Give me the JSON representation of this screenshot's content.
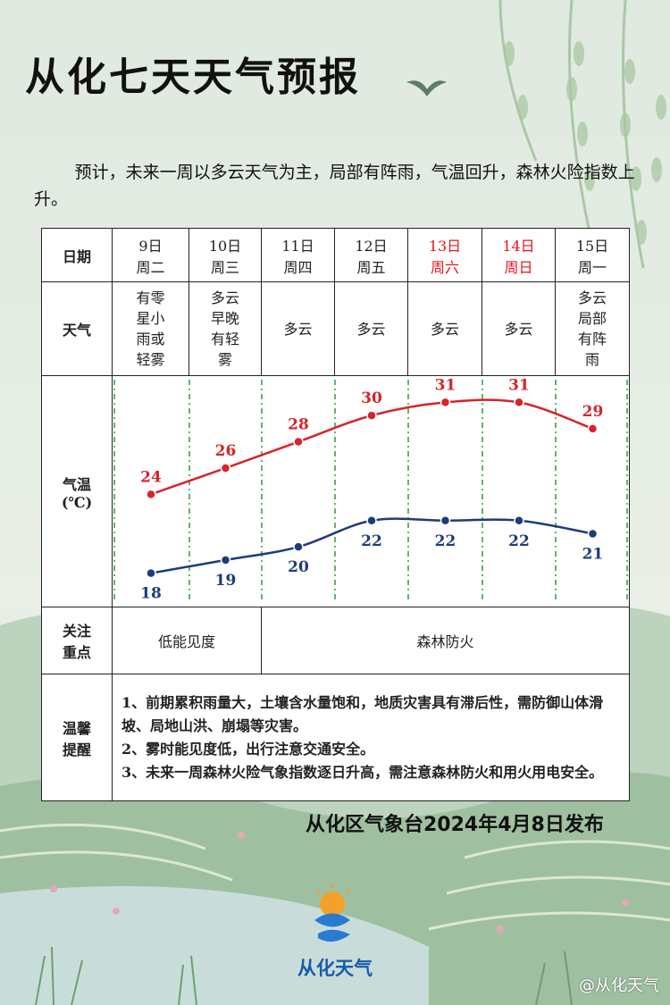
{
  "title": "从化七天天气预报",
  "intro": "预计，未来一周以多云天气为主，局部有阵雨，气温回升，森林火险指数上升。",
  "labels": {
    "date": "日期",
    "weather": "天气",
    "temp_line1": "气温",
    "temp_line2": "(℃)",
    "focus_line1": "关注",
    "focus_line2": "重点",
    "tips_line1": "温馨",
    "tips_line2": "提醒"
  },
  "days": [
    {
      "date": "9日",
      "weekday": "周二",
      "weather": [
        "有零",
        "星小",
        "雨或",
        "轻雾"
      ],
      "high": 24,
      "low": 18,
      "weekend": false
    },
    {
      "date": "10日",
      "weekday": "周三",
      "weather": [
        "多云",
        "早晚",
        "有轻",
        "雾"
      ],
      "high": 26,
      "low": 19,
      "weekend": false
    },
    {
      "date": "11日",
      "weekday": "周四",
      "weather": [
        "多云"
      ],
      "high": 28,
      "low": 20,
      "weekend": false
    },
    {
      "date": "12日",
      "weekday": "周五",
      "weather": [
        "多云"
      ],
      "high": 30,
      "low": 22,
      "weekend": false
    },
    {
      "date": "13日",
      "weekday": "周六",
      "weather": [
        "多云"
      ],
      "high": 31,
      "low": 22,
      "weekend": true
    },
    {
      "date": "14日",
      "weekday": "周日",
      "weather": [
        "多云"
      ],
      "high": 31,
      "low": 22,
      "weekend": true
    },
    {
      "date": "15日",
      "weekday": "周一",
      "weather": [
        "多云",
        "局部",
        "有阵",
        "雨"
      ],
      "high": 29,
      "low": 21,
      "weekend": false
    }
  ],
  "chart_data": {
    "type": "line",
    "categories": [
      "9日",
      "10日",
      "11日",
      "12日",
      "13日",
      "14日",
      "15日"
    ],
    "series": [
      {
        "name": "",
        "values": [
          24,
          26,
          28,
          30,
          31,
          31,
          29
        ],
        "color": "#d8232a"
      },
      {
        "name": "",
        "values": [
          18,
          19,
          20,
          22,
          22,
          22,
          21
        ],
        "color": "#1d3d7a"
      }
    ],
    "ylim": [
      16,
      33
    ],
    "grid": "vertical dashed green"
  },
  "focus": {
    "first": "低能见度",
    "rest": "森林防火"
  },
  "tips": [
    "1、前期累积雨量大，土壤含水量饱和，地质灾害具有滞后性，需防御山体滑坡、局地山洪、崩塌等灾害。",
    "2、雾时能见度低，出行注意交通安全。",
    "3、未来一周森林火险气象指数逐日升高，需注意森林防火和用火用电安全。"
  ],
  "release": "从化区气象台2024年4月8日发布",
  "logo_text": "从化天气",
  "watermark": "@从化天气",
  "colors": {
    "high_line": "#d8232a",
    "low_line": "#1d3d7a",
    "weekend": "#e3161d",
    "grid": "#2e9a3a"
  }
}
